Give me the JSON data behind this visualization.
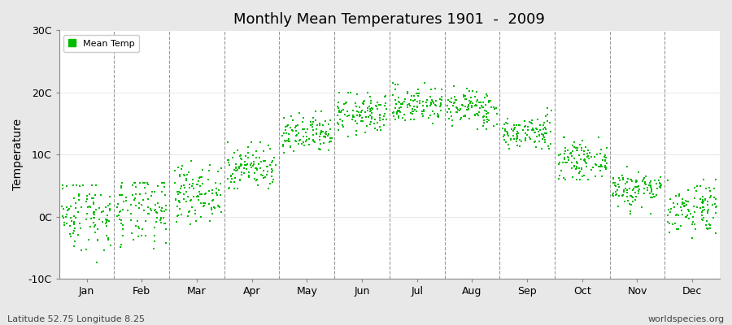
{
  "title": "Monthly Mean Temperatures 1901  -  2009",
  "ylabel": "Temperature",
  "xlabel_months": [
    "Jan",
    "Feb",
    "Mar",
    "Apr",
    "May",
    "Jun",
    "Jul",
    "Aug",
    "Sep",
    "Oct",
    "Nov",
    "Dec"
  ],
  "subtitle_left": "Latitude 52.75 Longitude 8.25",
  "subtitle_right": "worldspecies.org",
  "ylim": [
    -10,
    30
  ],
  "yticks": [
    -10,
    0,
    10,
    20,
    30
  ],
  "ytick_labels": [
    "-10C",
    "0C",
    "10C",
    "20C",
    "30C"
  ],
  "dot_color": "#00BB00",
  "dot_size": 3,
  "plot_bg_color": "#FFFFFF",
  "outer_bg_color": "#E8E8E8",
  "legend_label": "Mean Temp",
  "years": 109,
  "monthly_means": [
    0.5,
    0.8,
    3.8,
    8.0,
    13.0,
    16.5,
    18.0,
    17.5,
    13.5,
    9.0,
    4.5,
    1.5
  ],
  "monthly_stds": [
    3.0,
    3.0,
    2.2,
    1.8,
    1.6,
    1.6,
    1.5,
    1.5,
    1.4,
    1.4,
    1.5,
    2.2
  ],
  "monthly_min": [
    -8.5,
    -8.0,
    -1.5,
    4.5,
    9.0,
    11.0,
    14.0,
    14.0,
    11.0,
    6.0,
    0.5,
    -3.5
  ],
  "monthly_max": [
    5.0,
    5.5,
    9.0,
    12.0,
    17.0,
    20.0,
    21.5,
    21.0,
    17.5,
    13.0,
    8.0,
    6.0
  ],
  "dashed_line_color": "#999999",
  "title_fontsize": 13,
  "tick_fontsize": 9,
  "label_fontsize": 10
}
